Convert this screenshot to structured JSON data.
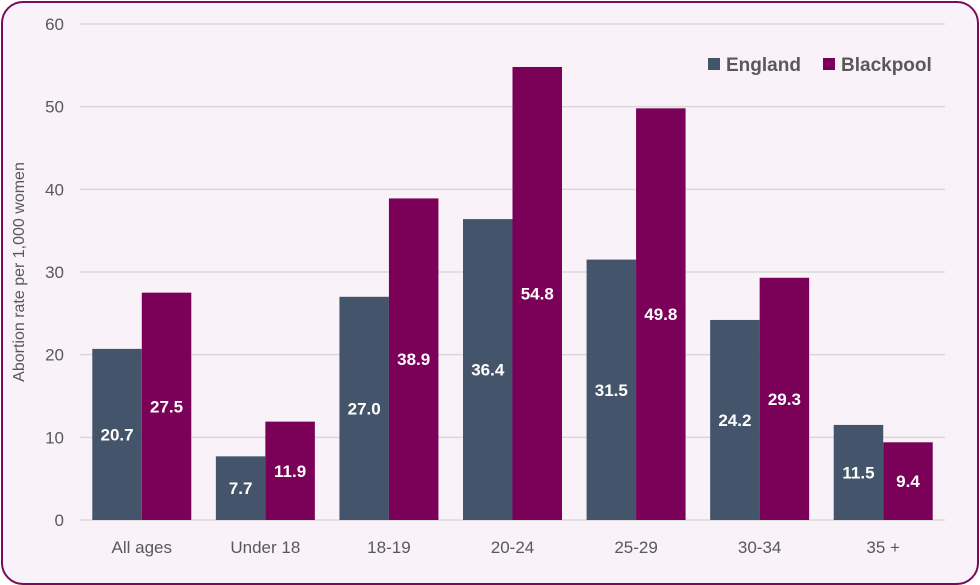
{
  "chart_data": {
    "type": "bar",
    "title": "",
    "xlabel": "",
    "ylabel": "Abortion rate per 1,000 women",
    "ylim": [
      0,
      60
    ],
    "yticks": [
      0,
      10,
      20,
      30,
      40,
      50,
      60
    ],
    "grid": true,
    "legend_position": "top-right",
    "categories": [
      "All ages",
      "Under 18",
      "18-19",
      "20-24",
      "25-29",
      "30-34",
      "35 +"
    ],
    "series": [
      {
        "name": "England",
        "color": "#44546a",
        "values": [
          20.7,
          7.7,
          27.0,
          36.4,
          31.5,
          24.2,
          11.5
        ]
      },
      {
        "name": "Blackpool",
        "color": "#7a0058",
        "values": [
          27.5,
          11.9,
          38.9,
          54.8,
          49.8,
          29.3,
          9.4
        ]
      }
    ]
  }
}
